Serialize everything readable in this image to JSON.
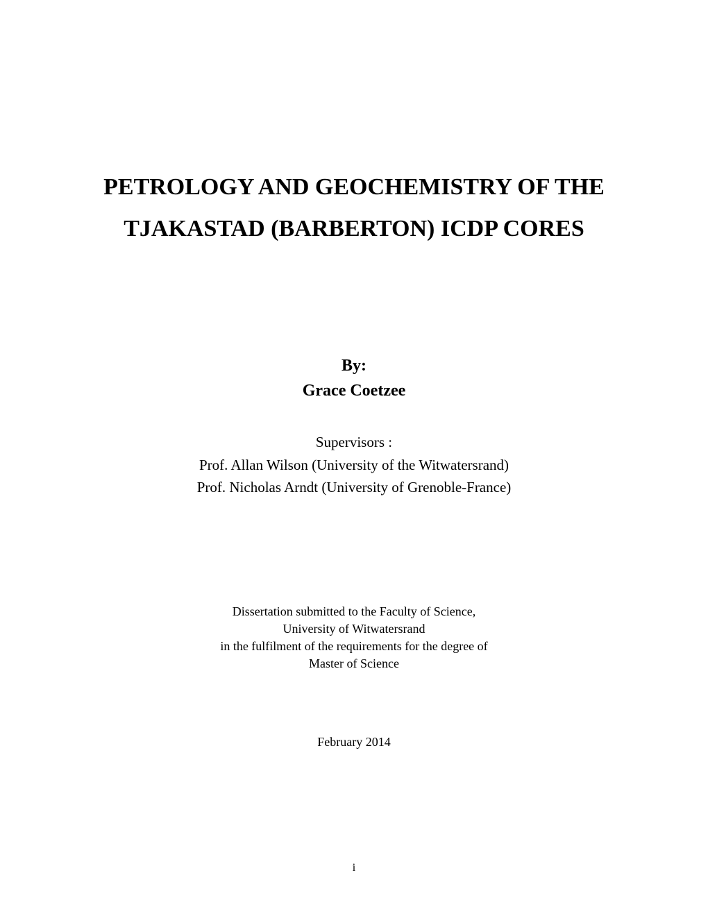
{
  "title": {
    "line1": "PETROLOGY AND GEOCHEMISTRY OF THE",
    "line2": "TJAKASTAD (BARBERTON) ICDP CORES"
  },
  "byline": {
    "by_label": "By:",
    "author": "Grace Coetzee"
  },
  "supervisors": {
    "label": "Supervisors :",
    "supervisor1": "Prof. Allan Wilson (University of the Witwatersrand)",
    "supervisor2": "Prof. Nicholas Arndt (University of Grenoble-France)"
  },
  "submission": {
    "line1": "Dissertation submitted to the Faculty of Science,",
    "line2": "University of Witwatersrand",
    "line3": "in the fulfilment of the requirements for the degree of",
    "line4": "Master of Science"
  },
  "date": "February 2014",
  "page_number": "i",
  "colors": {
    "text": "#000000",
    "background": "#ffffff"
  },
  "typography": {
    "font_family": "Times New Roman",
    "title_fontsize": 34,
    "byline_fontsize": 24,
    "supervisors_fontsize": 21,
    "submission_fontsize": 18,
    "date_fontsize": 18,
    "page_number_fontsize": 16
  }
}
